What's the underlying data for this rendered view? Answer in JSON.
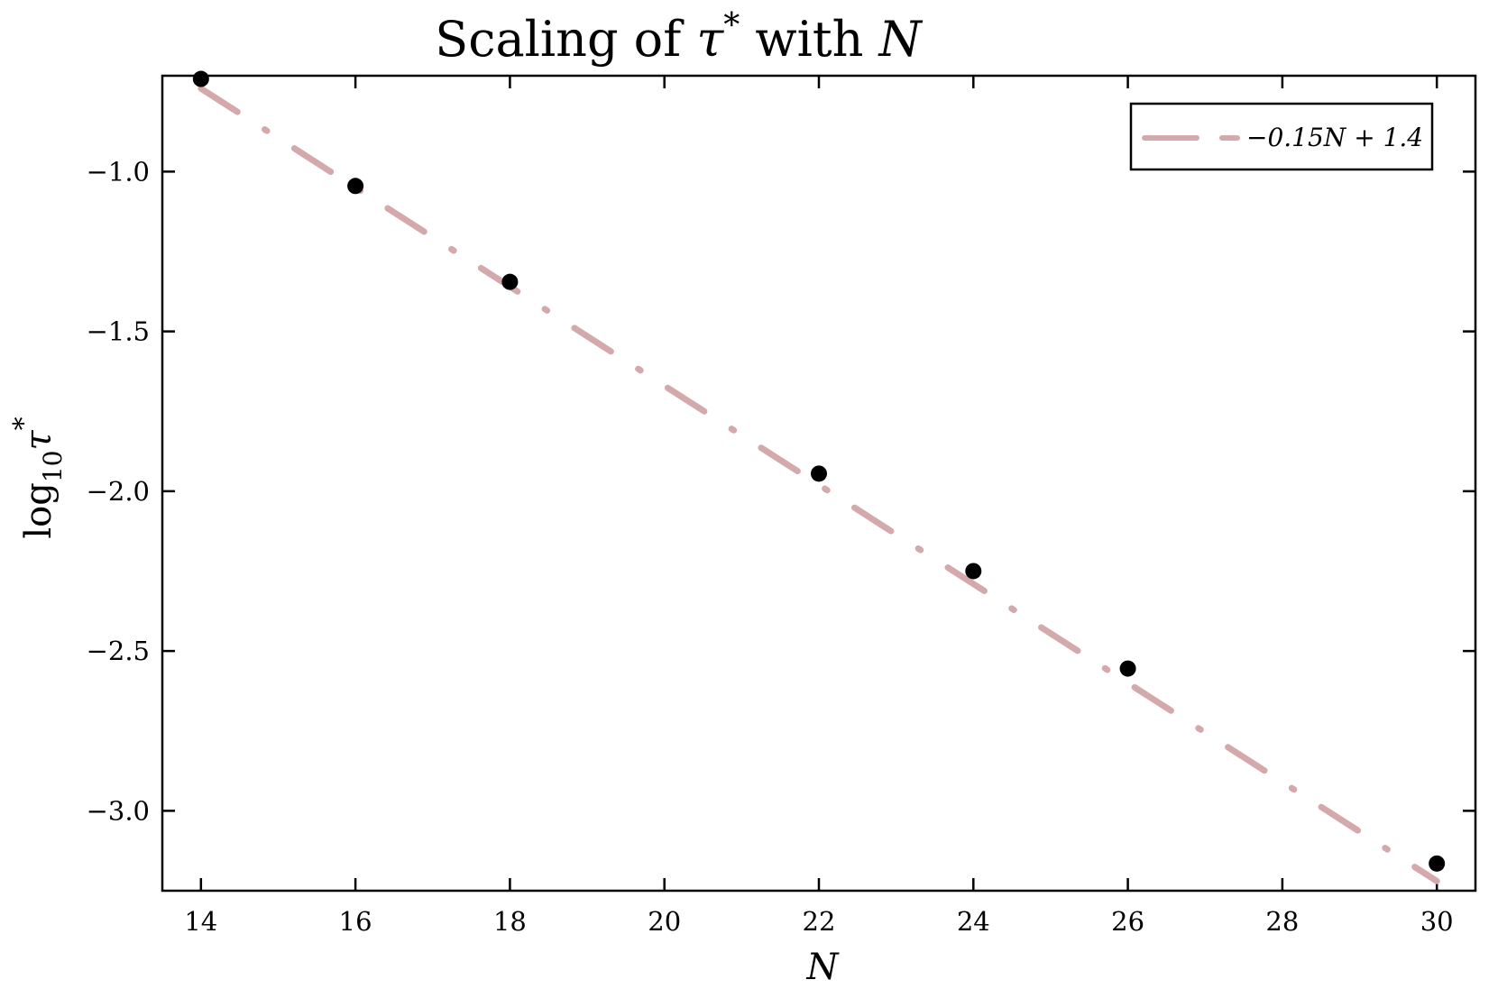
{
  "chart_data": {
    "type": "scatter",
    "title": {
      "prefix": "Scaling of ",
      "symbol": "τ",
      "superscript": "*",
      "middle": " with ",
      "variable": "N"
    },
    "xlabel": "N",
    "ylabel": {
      "prefix": "log",
      "subscript": "10",
      "symbol": "τ",
      "superscript": "*"
    },
    "xlim": [
      13.5,
      30.5
    ],
    "ylim": [
      -3.25,
      -0.7
    ],
    "xticks": [
      14,
      16,
      18,
      20,
      22,
      24,
      26,
      28,
      30
    ],
    "xtick_labels": [
      "14",
      "16",
      "18",
      "20",
      "22",
      "24",
      "26",
      "28",
      "30"
    ],
    "yticks": [
      -1.0,
      -1.5,
      -2.0,
      -2.5,
      -3.0
    ],
    "ytick_labels": [
      "−1.0",
      "−1.5",
      "−2.0",
      "−2.5",
      "−3.0"
    ],
    "grid": false,
    "legend_position": "top-right",
    "series": [
      {
        "kind": "points",
        "x": [
          14,
          16,
          18,
          22,
          24,
          26,
          30
        ],
        "y": [
          -0.71,
          -1.045,
          -1.345,
          -1.945,
          -2.25,
          -2.555,
          -3.165
        ],
        "color": "#000000"
      },
      {
        "kind": "fit-line",
        "name": "−0.15N + 1.4",
        "slope": -0.155,
        "intercept": 1.43,
        "x_range": [
          14,
          30
        ],
        "color": "#d4a9ab",
        "style": "dashed"
      }
    ]
  }
}
